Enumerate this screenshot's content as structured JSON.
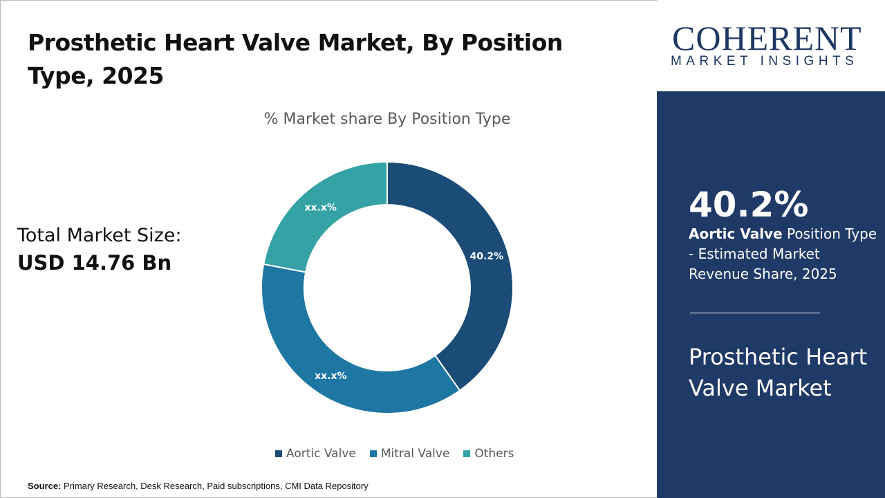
{
  "title": "Prosthetic Heart Valve Market, By Position Type, 2025",
  "total_market": {
    "label": "Total Market Size:",
    "value": "USD 14.76 Bn"
  },
  "source": {
    "label": "Source:",
    "text": " Primary Research, Desk Research, Paid subscriptions, CMI Data Repository"
  },
  "logo": {
    "main": "COHERENT",
    "sub": "MARKET INSIGHTS"
  },
  "panel": {
    "big": "40.2%",
    "desc_bold": "Aortic Valve",
    "desc_rest": " Position Type - Estimated Market Revenue Share, 2025",
    "market_name": "Prosthetic Heart Valve Market"
  },
  "chart_data": {
    "type": "pie",
    "donut": true,
    "title": "% Market share By Position Type",
    "categories": [
      "Aortic Valve",
      "Mitral Valve",
      "Others"
    ],
    "values": [
      40.2,
      37.8,
      22.0
    ],
    "data_labels": [
      "40.2%",
      "xx.x%",
      "xx.x%"
    ],
    "colors": [
      "#1b4c78",
      "#1e76a3",
      "#35a2a5"
    ],
    "legend": "bottom"
  }
}
